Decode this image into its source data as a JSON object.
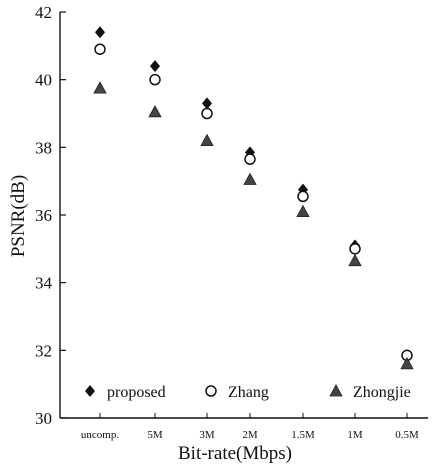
{
  "chart_data": {
    "type": "scatter",
    "title": "",
    "xlabel": "Bit-rate(Mbps)",
    "ylabel": "PSNR(dB)",
    "categories": [
      "uncomp.",
      "5M",
      "3M",
      "2M",
      "1.5M",
      "1M",
      "0.5M"
    ],
    "ylim": [
      30,
      42
    ],
    "yticks": [
      30,
      32,
      34,
      36,
      38,
      40,
      42
    ],
    "grid": false,
    "legend_position": "bottom",
    "series": [
      {
        "name": "proposed",
        "marker": "diamond",
        "color": "#111111",
        "values": [
          41.4,
          40.4,
          39.3,
          37.85,
          36.75,
          35.1,
          31.85
        ]
      },
      {
        "name": "Zhang",
        "marker": "circle-open",
        "color": "#111111",
        "values": [
          40.9,
          40.0,
          39.0,
          37.65,
          36.55,
          35.0,
          31.85
        ]
      },
      {
        "name": "Zhongjie",
        "marker": "triangle",
        "color": "#333333",
        "values": [
          39.75,
          39.05,
          38.2,
          37.05,
          36.1,
          34.65,
          31.6
        ]
      }
    ]
  }
}
